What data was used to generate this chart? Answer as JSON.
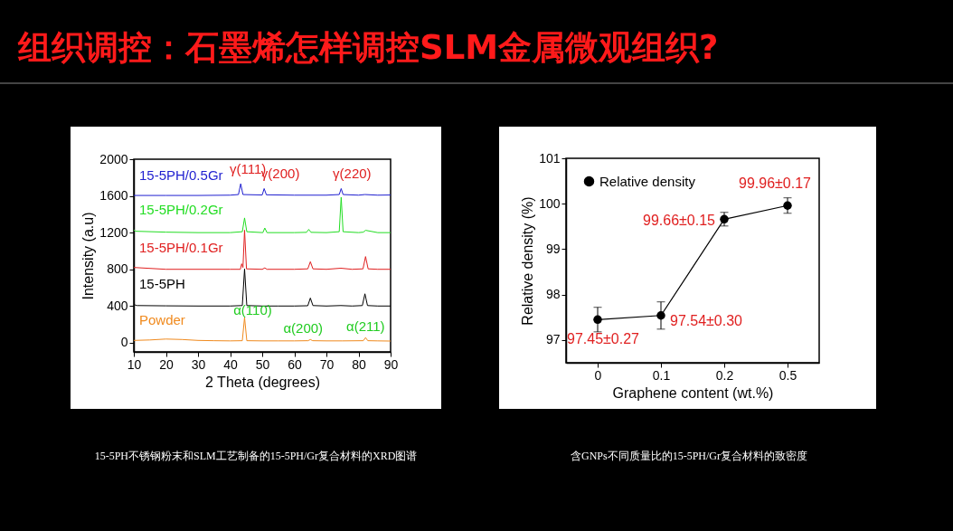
{
  "chart_data": [
    {
      "type": "line",
      "title": "组织调控：石墨烯怎样调控SLM金属微观组织?",
      "xlabel": "2 Theta (degrees)",
      "ylabel": "Intensity (a.u)",
      "xlim": [
        10,
        90
      ],
      "xticks": [
        10,
        20,
        30,
        40,
        50,
        60,
        70,
        80,
        90
      ],
      "ylim": [
        -100,
        2000
      ],
      "yticks": [
        0,
        400,
        800,
        1200,
        1600,
        2000
      ],
      "grid": false,
      "legend": false,
      "marker": "none",
      "line_style": "solid",
      "series": [
        {
          "name": "Powder",
          "color": "#f08a1e",
          "x": [
            10,
            15,
            20,
            25,
            30,
            35,
            40,
            43.8,
            44.5,
            45.2,
            50,
            55,
            60,
            64.3,
            65,
            65.7,
            70,
            75,
            81.5,
            82.2,
            82.9,
            86,
            90
          ],
          "values": [
            25,
            30,
            40,
            35,
            25,
            22,
            20,
            22,
            275,
            22,
            20,
            20,
            20,
            22,
            35,
            22,
            20,
            20,
            22,
            56,
            22,
            20,
            18
          ]
        },
        {
          "name": "15-5PH",
          "color": "#000000",
          "x": [
            10,
            10.5,
            11,
            20,
            30,
            40,
            43.8,
            44.5,
            45.2,
            50,
            55,
            60,
            64.2,
            65,
            65.8,
            70,
            74.5,
            78,
            81.2,
            82,
            82.8,
            86,
            90
          ],
          "values": [
            420,
            410,
            405,
            402,
            400,
            400,
            405,
            805,
            405,
            400,
            400,
            400,
            403,
            487,
            405,
            400,
            405,
            400,
            405,
            533,
            405,
            400,
            400
          ]
        },
        {
          "name": "15-5PH/0.1Gr",
          "color": "#e02020",
          "x": [
            10,
            20,
            30,
            40,
            43.2,
            43.6,
            44,
            44.5,
            45.1,
            50,
            50.8,
            51.5,
            60,
            64.2,
            65,
            65.8,
            70,
            74.5,
            78,
            81.4,
            82.2,
            83,
            86,
            90
          ],
          "values": [
            820,
            800,
            800,
            800,
            800,
            860,
            820,
            1226,
            805,
            800,
            815,
            800,
            800,
            805,
            883,
            805,
            800,
            812,
            800,
            805,
            939,
            805,
            800,
            800
          ]
        },
        {
          "name": "15-5PH/0.2Gr",
          "color": "#22dd22",
          "x": [
            10,
            10.5,
            20,
            30,
            40,
            43.8,
            44.5,
            45.2,
            50.2,
            50.8,
            51.5,
            60,
            63.8,
            64.5,
            65.2,
            70,
            74,
            74.6,
            75.2,
            80,
            81.5,
            82.2,
            86,
            90
          ],
          "values": [
            1230,
            1215,
            1205,
            1200,
            1200,
            1210,
            1360,
            1210,
            1200,
            1250,
            1200,
            1200,
            1203,
            1235,
            1203,
            1200,
            1210,
            1585,
            1210,
            1200,
            1205,
            1225,
            1200,
            1200
          ]
        },
        {
          "name": "15-5PH/0.5Gr",
          "color": "#1f1fd0",
          "x": [
            10,
            20,
            30,
            40,
            42.6,
            43.3,
            44,
            50,
            50.6,
            51.3,
            60,
            70,
            74,
            74.6,
            75.2,
            80,
            82,
            86,
            90
          ],
          "values": [
            1605,
            1605,
            1605,
            1608,
            1615,
            1732,
            1615,
            1610,
            1680,
            1612,
            1608,
            1608,
            1615,
            1680,
            1615,
            1608,
            1615,
            1608,
            1610
          ]
        }
      ],
      "annotations": [
        {
          "text": "γ(111)",
          "x": 43.3,
          "y": 1732
        },
        {
          "text": "γ(200)",
          "x": 50.6,
          "y": 1680
        },
        {
          "text": "γ(220)",
          "x": 74.6,
          "y": 1680
        },
        {
          "text": "α(110)",
          "x": 44.5,
          "y": 275
        },
        {
          "text": "α(200)",
          "x": 65,
          "y": 35
        },
        {
          "text": "α(211)",
          "x": 82.2,
          "y": 56
        },
        "15-5PH不锈钢粉末和SLM工艺制备的15-5PH/Gr复合材料的XRD图谱"
      ]
    },
    {
      "type": "line",
      "xlabel": "Graphene content (wt.%)",
      "ylabel": "Relative density (%)",
      "categories": [
        "0",
        "0.1",
        "0.2",
        "0.5"
      ],
      "ylim": [
        96.5,
        101
      ],
      "yticks": [
        97,
        98,
        99,
        100,
        101
      ],
      "grid": false,
      "legend": "top left",
      "marker": "circle",
      "line_style": "solid",
      "series": [
        {
          "name": "Relative density",
          "color": "#000000",
          "values": [
            97.45,
            97.54,
            99.66,
            99.96
          ],
          "errors": [
            0.27,
            0.3,
            0.15,
            0.17
          ],
          "value_labels": [
            "97.45±0.27",
            "97.54±0.30",
            "99.66±0.15",
            "99.96±0.17"
          ]
        }
      ],
      "annotations": [
        "含GNPs不同质量比的15-5PH/Gr复合材料的致密度"
      ]
    }
  ]
}
